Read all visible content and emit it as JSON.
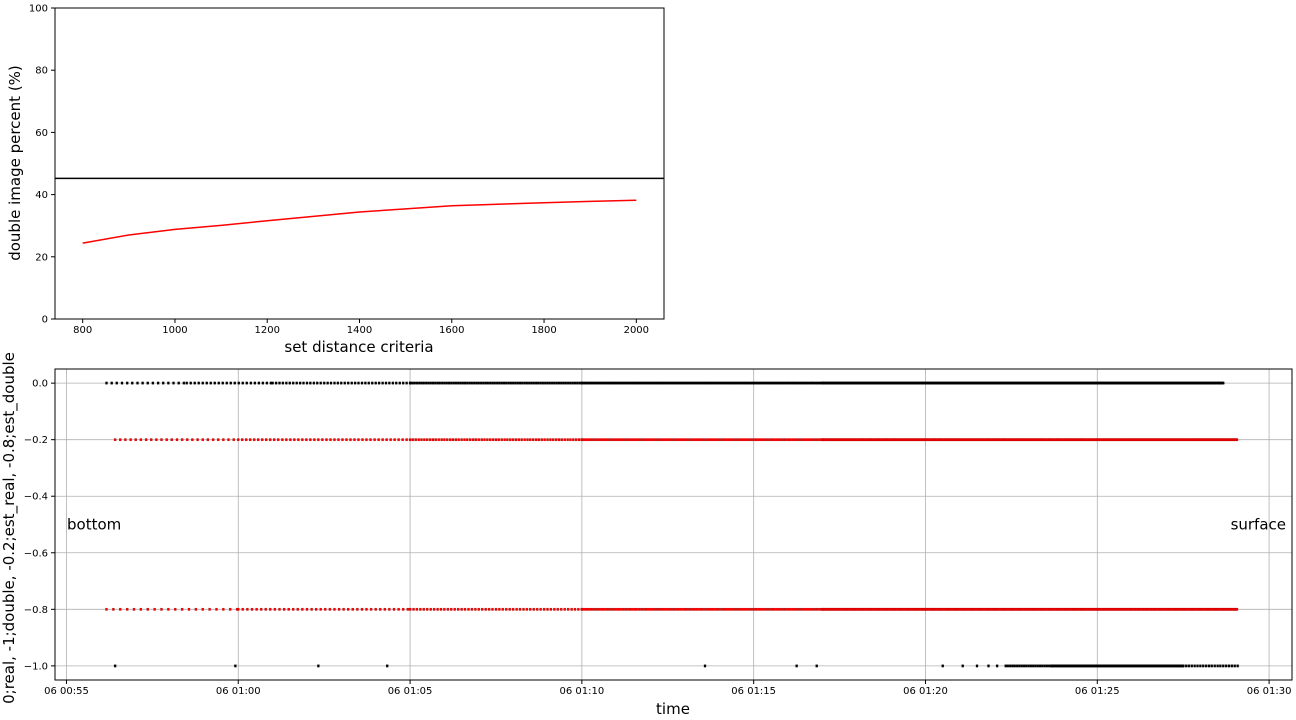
{
  "chart_data": [
    {
      "type": "line",
      "title": "",
      "xlabel": "set distance criteria",
      "ylabel": "double image percent (%)",
      "xlim": [
        740,
        2060
      ],
      "ylim": [
        0,
        100
      ],
      "xticks": [
        800,
        1000,
        1200,
        1400,
        1600,
        1800,
        2000
      ],
      "yticks": [
        0,
        20,
        40,
        60,
        80,
        100
      ],
      "grid": false,
      "hline": {
        "y": 45.2,
        "color": "#000000"
      },
      "series": [
        {
          "color": "#ff0000",
          "x": [
            800,
            900,
            1000,
            1100,
            1200,
            1300,
            1400,
            1500,
            1600,
            1700,
            1800,
            1900,
            2000
          ],
          "y": [
            24.4,
            27.0,
            28.8,
            30.1,
            31.6,
            33.0,
            34.4,
            35.4,
            36.4,
            36.9,
            37.4,
            37.8,
            38.2
          ]
        }
      ]
    },
    {
      "type": "scatter",
      "title": "",
      "xlabel": "time",
      "ylabel": "0;real, -1;double, -0.2;est_real, -0.8;est_double",
      "xlim": [
        "06 00:54:40",
        "06 01:30:40"
      ],
      "ylim": [
        -1.05,
        0.05
      ],
      "xticks": [
        "06 00:55",
        "06 01:00",
        "06 01:05",
        "06 01:10",
        "06 01:15",
        "06 01:20",
        "06 01:25",
        "06 01:30"
      ],
      "yticks": [
        "0.0",
        "−0.2",
        "−0.4",
        "−0.6",
        "−0.8",
        "−1.0"
      ],
      "ytick_values": [
        0.0,
        -0.2,
        -0.4,
        -0.6,
        -0.8,
        -1.0
      ],
      "grid": true,
      "annotations": [
        {
          "text": "bottom",
          "x": "06 00:55:10",
          "y": -0.5
        },
        {
          "text": "surface",
          "x": "06 01:29:40",
          "y": -0.5
        }
      ],
      "series": [
        {
          "y": 0.0,
          "color": "#000000",
          "density": [
            {
              "from": "06 00:56:10",
              "to": "06 00:58:30",
              "step_seconds": 9
            },
            {
              "from": "06 00:58:30",
              "to": "06 01:01:00",
              "step_seconds": 7
            },
            {
              "from": "06 01:01:00",
              "to": "06 01:05:00",
              "step_seconds": 6
            },
            {
              "from": "06 01:05:00",
              "to": "06 01:10:00",
              "step_seconds": 4
            },
            {
              "from": "06 01:10:00",
              "to": "06 01:17:00",
              "step_seconds": 3
            },
            {
              "from": "06 01:17:00",
              "to": "06 01:28:40",
              "step_seconds": 2
            }
          ]
        },
        {
          "y": -0.2,
          "color": "#ff0000",
          "density": [
            {
              "from": "06 00:56:25",
              "to": "06 01:00:00",
              "step_seconds": 9
            },
            {
              "from": "06 01:00:00",
              "to": "06 01:05:00",
              "step_seconds": 7
            },
            {
              "from": "06 01:05:00",
              "to": "06 01:10:00",
              "step_seconds": 5
            },
            {
              "from": "06 01:10:00",
              "to": "06 01:17:00",
              "step_seconds": 4
            },
            {
              "from": "06 01:17:00",
              "to": "06 01:29:05",
              "step_seconds": 2
            }
          ]
        },
        {
          "y": -0.8,
          "color": "#ff0000",
          "density": [
            {
              "from": "06 00:56:10",
              "to": "06 01:00:00",
              "step_seconds": 12
            },
            {
              "from": "06 01:00:00",
              "to": "06 01:05:00",
              "step_seconds": 8
            },
            {
              "from": "06 01:05:00",
              "to": "06 01:10:00",
              "step_seconds": 6
            },
            {
              "from": "06 01:10:00",
              "to": "06 01:17:00",
              "step_seconds": 4
            },
            {
              "from": "06 01:17:00",
              "to": "06 01:29:05",
              "step_seconds": 2
            }
          ]
        },
        {
          "y": -1.0,
          "color": "#000000",
          "points": [
            "06 00:56:25",
            "06 00:59:55",
            "06 01:02:20",
            "06 01:04:20",
            "06 01:13:35",
            "06 01:16:15",
            "06 01:16:50",
            "06 01:20:30",
            "06 01:21:05",
            "06 01:21:30",
            "06 01:21:50",
            "06 01:22:05"
          ],
          "density": [
            {
              "from": "06 01:22:20",
              "to": "06 01:23:40",
              "step_seconds": 4
            },
            {
              "from": "06 01:23:40",
              "to": "06 01:27:30",
              "step_seconds": 2
            },
            {
              "from": "06 01:27:30",
              "to": "06 01:29:05",
              "step_seconds": 5
            }
          ]
        }
      ]
    }
  ]
}
